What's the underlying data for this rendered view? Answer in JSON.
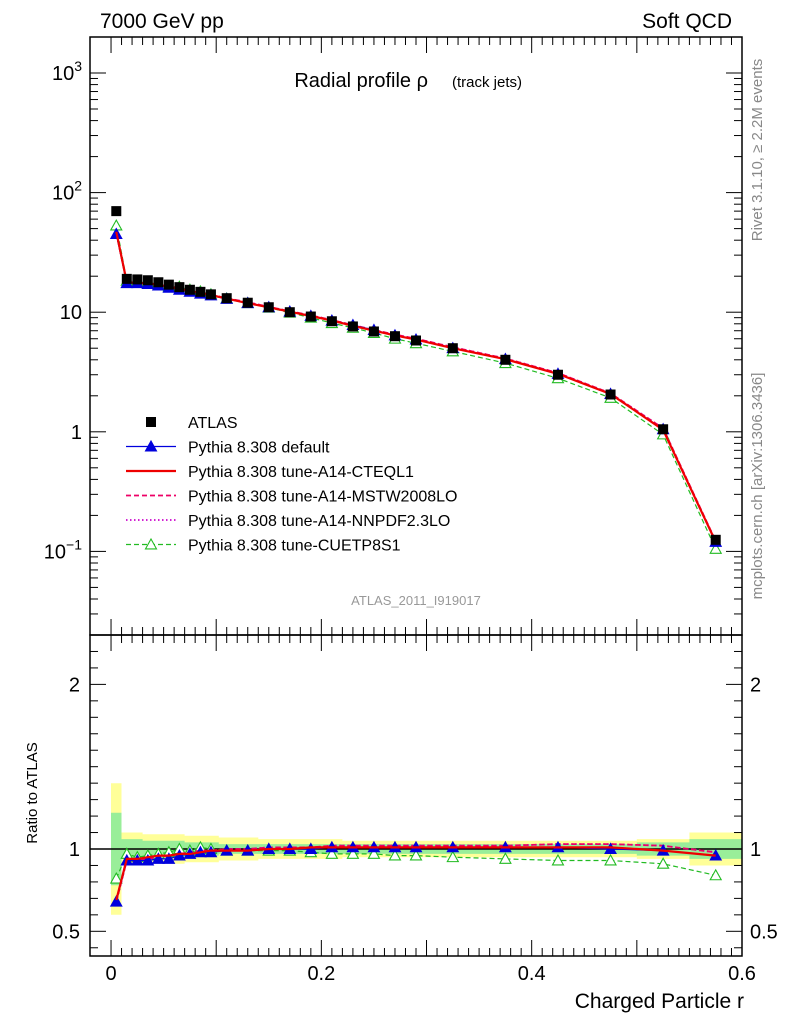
{
  "header": {
    "left": "7000 GeV pp",
    "right": "Soft QCD"
  },
  "side_labels": {
    "top": "Rivet 3.1.10, ≥ 2.2M events",
    "bottom": "mcplots.cern.ch [arXiv:1306.3436]"
  },
  "colors": {
    "atlas": "#000000",
    "default": "#0000dd",
    "cteql1": "#ee0000",
    "mstw": "#ee0066",
    "nnpdf": "#cc00cc",
    "cuetp8s1": "#22bb22",
    "band_inner": "#99ee99",
    "band_outer": "#ffff99"
  },
  "chart_data": [
    {
      "type": "line",
      "title": "Radial profile ρ",
      "title_suffix": "(track jets)",
      "watermark": "ATLAS_2011_I919017",
      "xlim": [
        -0.02,
        0.6
      ],
      "ylim": [
        0.02,
        2000
      ],
      "yscale": "log",
      "ytick_labels": [
        "10^3",
        "10^2",
        "10",
        "1",
        "10^-1"
      ],
      "x": [
        0.005,
        0.015,
        0.025,
        0.035,
        0.045,
        0.055,
        0.065,
        0.075,
        0.085,
        0.095,
        0.11,
        0.13,
        0.15,
        0.17,
        0.19,
        0.21,
        0.23,
        0.25,
        0.27,
        0.29,
        0.325,
        0.375,
        0.425,
        0.475,
        0.525,
        0.575
      ],
      "series": [
        {
          "name": "ATLAS",
          "style": "data",
          "values": [
            70,
            19,
            18.8,
            18.5,
            17.8,
            17,
            16.2,
            15.4,
            14.8,
            14.1,
            13.1,
            12.0,
            11.0,
            10.0,
            9.2,
            8.4,
            7.6,
            6.9,
            6.3,
            5.8,
            5.0,
            4.0,
            3.0,
            2.05,
            1.05,
            0.125
          ]
        },
        {
          "name": "Pythia 8.308 default",
          "style": "default",
          "values": [
            45,
            17.5,
            17.5,
            17.2,
            16.7,
            16.0,
            15.4,
            14.8,
            14.3,
            13.8,
            12.9,
            11.9,
            11.0,
            10.1,
            9.3,
            8.5,
            7.8,
            7.1,
            6.4,
            5.9,
            5.0,
            4.05,
            3.05,
            2.07,
            1.05,
            0.12
          ]
        },
        {
          "name": "Pythia 8.308 tune-A14-CTEQL1",
          "style": "cteql1",
          "values": [
            47,
            17.8,
            17.6,
            17.4,
            17.0,
            16.3,
            15.7,
            15.0,
            14.5,
            13.9,
            13.0,
            11.9,
            11.0,
            10.1,
            9.3,
            8.5,
            7.7,
            7.0,
            6.4,
            5.9,
            5.0,
            4.05,
            3.05,
            2.07,
            1.04,
            0.12
          ]
        },
        {
          "name": "Pythia 8.308 tune-A14-MSTW2008LO",
          "style": "mstw",
          "values": [
            46,
            17.7,
            17.5,
            17.4,
            17.0,
            16.4,
            15.8,
            15.1,
            14.6,
            14.0,
            13.1,
            12.1,
            11.1,
            10.2,
            9.4,
            8.6,
            7.8,
            7.1,
            6.5,
            6.0,
            5.1,
            4.1,
            3.1,
            2.1,
            1.07,
            0.122
          ]
        },
        {
          "name": "Pythia 8.308 tune-A14-NNPDF2.3LO",
          "style": "nnpdf",
          "values": [
            46,
            17.7,
            17.5,
            17.4,
            17.0,
            16.4,
            15.8,
            15.1,
            14.6,
            14.0,
            13.1,
            12.1,
            11.1,
            10.2,
            9.4,
            8.6,
            7.8,
            7.1,
            6.5,
            6.0,
            5.1,
            4.1,
            3.1,
            2.1,
            1.07,
            0.122
          ]
        },
        {
          "name": "Pythia 8.308 tune-CUETP8S1",
          "style": "cuetp8s1",
          "values": [
            53,
            18.3,
            17.9,
            17.7,
            17.1,
            16.4,
            16.3,
            15.4,
            14.9,
            14.1,
            13.0,
            11.9,
            10.9,
            9.9,
            9.0,
            8.1,
            7.4,
            6.7,
            6.0,
            5.5,
            4.7,
            3.75,
            2.8,
            1.92,
            0.95,
            0.105
          ]
        }
      ]
    },
    {
      "type": "line",
      "ylabel": "Ratio to ATLAS",
      "xlabel": "Charged Particle r",
      "xlim": [
        -0.02,
        0.6
      ],
      "ylim": [
        0.35,
        2.3
      ],
      "xtick_labels": [
        "0",
        "0.2",
        "0.4",
        "0.6"
      ],
      "ytick_labels": [
        "2",
        "1",
        "0.5"
      ],
      "x": [
        0.005,
        0.015,
        0.025,
        0.035,
        0.045,
        0.055,
        0.065,
        0.075,
        0.085,
        0.095,
        0.11,
        0.13,
        0.15,
        0.17,
        0.19,
        0.21,
        0.23,
        0.25,
        0.27,
        0.29,
        0.325,
        0.375,
        0.425,
        0.475,
        0.525,
        0.575
      ],
      "band_inner": [
        0.22,
        0.06,
        0.06,
        0.05,
        0.05,
        0.05,
        0.05,
        0.04,
        0.04,
        0.04,
        0.03,
        0.03,
        0.03,
        0.03,
        0.03,
        0.03,
        0.03,
        0.03,
        0.03,
        0.03,
        0.03,
        0.03,
        0.03,
        0.03,
        0.04,
        0.06
      ],
      "band_outer": [
        0.4,
        0.1,
        0.1,
        0.09,
        0.09,
        0.09,
        0.09,
        0.08,
        0.08,
        0.08,
        0.07,
        0.07,
        0.06,
        0.06,
        0.06,
        0.06,
        0.05,
        0.05,
        0.05,
        0.05,
        0.05,
        0.05,
        0.05,
        0.05,
        0.06,
        0.1
      ],
      "series": [
        {
          "name": "Pythia 8.308 default",
          "style": "default",
          "values": [
            0.68,
            0.93,
            0.93,
            0.93,
            0.94,
            0.94,
            0.96,
            0.97,
            0.98,
            0.98,
            0.99,
            0.99,
            1.0,
            1.0,
            1.0,
            1.01,
            1.01,
            1.01,
            1.01,
            1.01,
            1.01,
            1.01,
            1.01,
            1.0,
            0.99,
            0.96
          ]
        },
        {
          "name": "Pythia 8.308 tune-A14-CTEQL1",
          "style": "cteql1",
          "values": [
            0.69,
            0.94,
            0.94,
            0.95,
            0.96,
            0.96,
            0.97,
            0.97,
            0.98,
            0.99,
            0.99,
            0.99,
            1.0,
            1.0,
            1.01,
            1.01,
            1.01,
            1.01,
            1.01,
            1.01,
            1.01,
            1.01,
            1.01,
            1.01,
            0.99,
            0.96
          ]
        },
        {
          "name": "Pythia 8.308 tune-A14-MSTW2008LO",
          "style": "mstw",
          "values": [
            0.68,
            0.93,
            0.93,
            0.94,
            0.95,
            0.96,
            0.97,
            0.98,
            0.99,
            0.99,
            1.0,
            1.0,
            1.01,
            1.01,
            1.01,
            1.02,
            1.02,
            1.02,
            1.02,
            1.02,
            1.02,
            1.02,
            1.03,
            1.03,
            1.02,
            0.98
          ]
        },
        {
          "name": "Pythia 8.308 tune-A14-NNPDF2.3LO",
          "style": "nnpdf",
          "values": [
            0.68,
            0.93,
            0.93,
            0.94,
            0.95,
            0.96,
            0.97,
            0.98,
            0.99,
            0.99,
            1.0,
            1.0,
            1.01,
            1.01,
            1.01,
            1.02,
            1.02,
            1.02,
            1.02,
            1.02,
            1.02,
            1.02,
            1.03,
            1.03,
            1.02,
            0.98
          ]
        },
        {
          "name": "Pythia 8.308 tune-CUETP8S1",
          "style": "cuetp8s1",
          "values": [
            0.82,
            0.97,
            0.95,
            0.96,
            0.97,
            0.98,
            1.0,
            0.99,
            1.01,
            1.0,
            0.99,
            0.99,
            0.99,
            0.99,
            0.98,
            0.97,
            0.97,
            0.97,
            0.96,
            0.96,
            0.95,
            0.94,
            0.93,
            0.93,
            0.91,
            0.84
          ]
        }
      ]
    }
  ]
}
